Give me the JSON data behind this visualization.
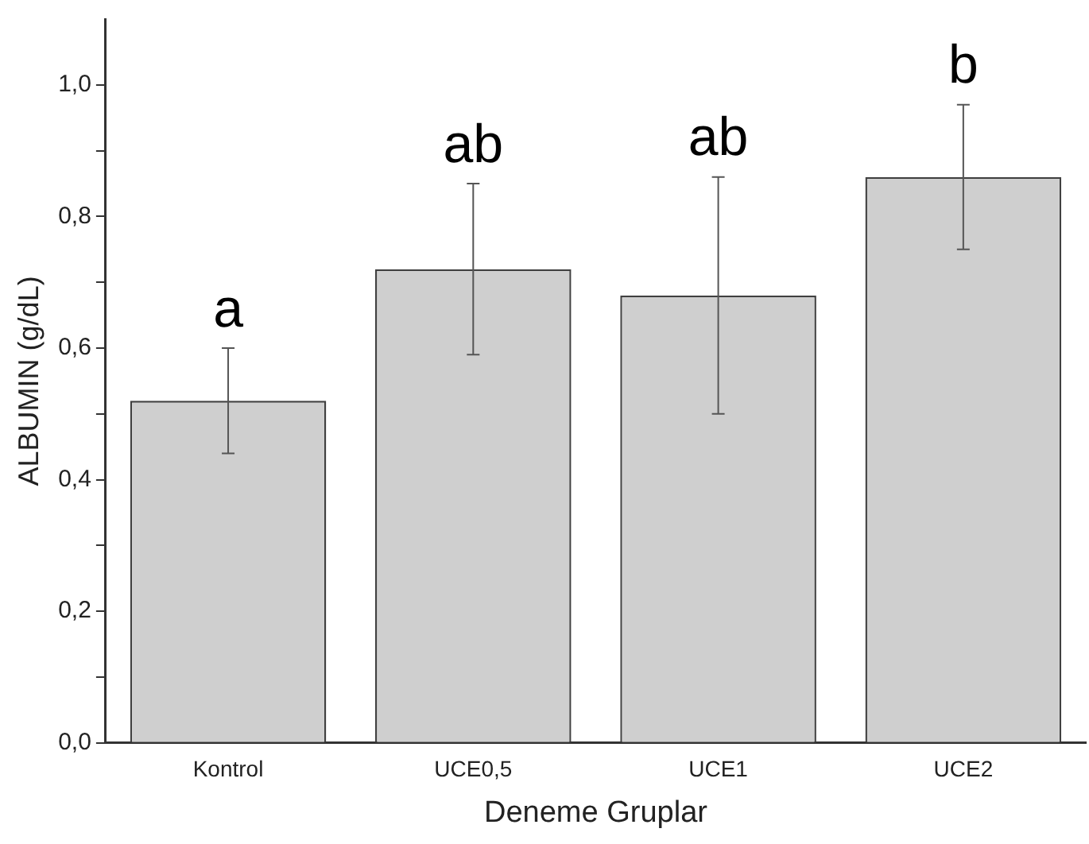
{
  "chart_data": {
    "type": "bar",
    "xlabel": "Deneme Gruplar",
    "ylabel": "ALBUMIN (g/dL)",
    "categories": [
      "Kontrol",
      "UCE0,5",
      "UCE1",
      "UCE2"
    ],
    "values": [
      0.52,
      0.72,
      0.68,
      0.86
    ],
    "errors": [
      [
        0.44,
        0.6
      ],
      [
        0.59,
        0.85
      ],
      [
        0.5,
        0.86
      ],
      [
        0.75,
        0.97
      ]
    ],
    "color": "#cfcfcf",
    "ylim": [
      0,
      1.1
    ],
    "yticks": [
      {
        "value": 0,
        "label": "0,0"
      },
      {
        "value": 0.1,
        "label": null
      },
      {
        "value": 0.2,
        "label": "0,2"
      },
      {
        "value": 0.3,
        "label": null
      },
      {
        "value": 0.4,
        "label": "0,4"
      },
      {
        "value": 0.5,
        "label": null
      },
      {
        "value": 0.6,
        "label": "0,6"
      },
      {
        "value": 0.7,
        "label": null
      },
      {
        "value": 0.8,
        "label": "0,8"
      },
      {
        "value": 0.9,
        "label": null
      },
      {
        "value": 1,
        "label": "1,0"
      }
    ],
    "annotations": [
      {
        "text": "a",
        "x": "Kontrol",
        "y": 0.6
      },
      {
        "text": "ab",
        "x": "UCE0,5",
        "y": 0.85
      },
      {
        "text": "ab",
        "x": "UCE1",
        "y": 0.86
      },
      {
        "text": "b",
        "x": "UCE2",
        "y": 0.97
      }
    ],
    "grid": false,
    "legend": false
  }
}
